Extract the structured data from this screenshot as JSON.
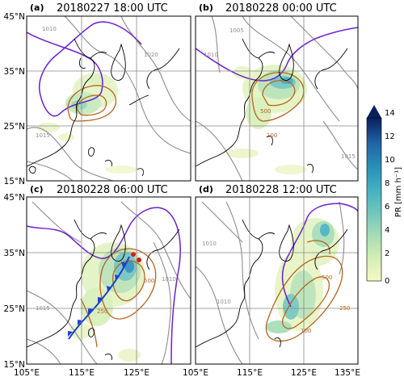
{
  "panels": [
    {
      "label": "(a)",
      "title": "20180227 18:00 UTC"
    },
    {
      "label": "(b)",
      "title": "20180228 00:00 UTC"
    },
    {
      "label": "(c)",
      "title": "20180228 06:00 UTC"
    },
    {
      "label": "(d)",
      "title": "20180228 12:00 UTC"
    }
  ],
  "lat_ticks": [
    "45°N",
    "35°N",
    "25°N",
    "15°N"
  ],
  "lon_ticks": [
    "105°E",
    "115°E",
    "125°E",
    "135°E"
  ],
  "colorbar": {
    "label": "PR [mm h⁻¹]",
    "ticks": [
      "14",
      "12",
      "10",
      "8",
      "6",
      "4",
      "2",
      "0"
    ],
    "colors": [
      "#f7f9c4",
      "#d5eeb3",
      "#a6dcb5",
      "#70c6bc",
      "#44b0c0",
      "#2a8fb8",
      "#2166a8",
      "#1b3f8f",
      "#0b1f5e"
    ]
  },
  "contour_labels": {
    "pressure": [
      "1010",
      "1015",
      "1020",
      "1005"
    ],
    "brown": [
      "500",
      "100",
      "250"
    ]
  },
  "colors": {
    "land_outline": "#000000",
    "pressure_contour": "#8c8c8c",
    "purple_contour": "#6a1fd0",
    "brown_contour": "#b5651d",
    "front": "#1a3fd1",
    "grid": "#888888"
  }
}
